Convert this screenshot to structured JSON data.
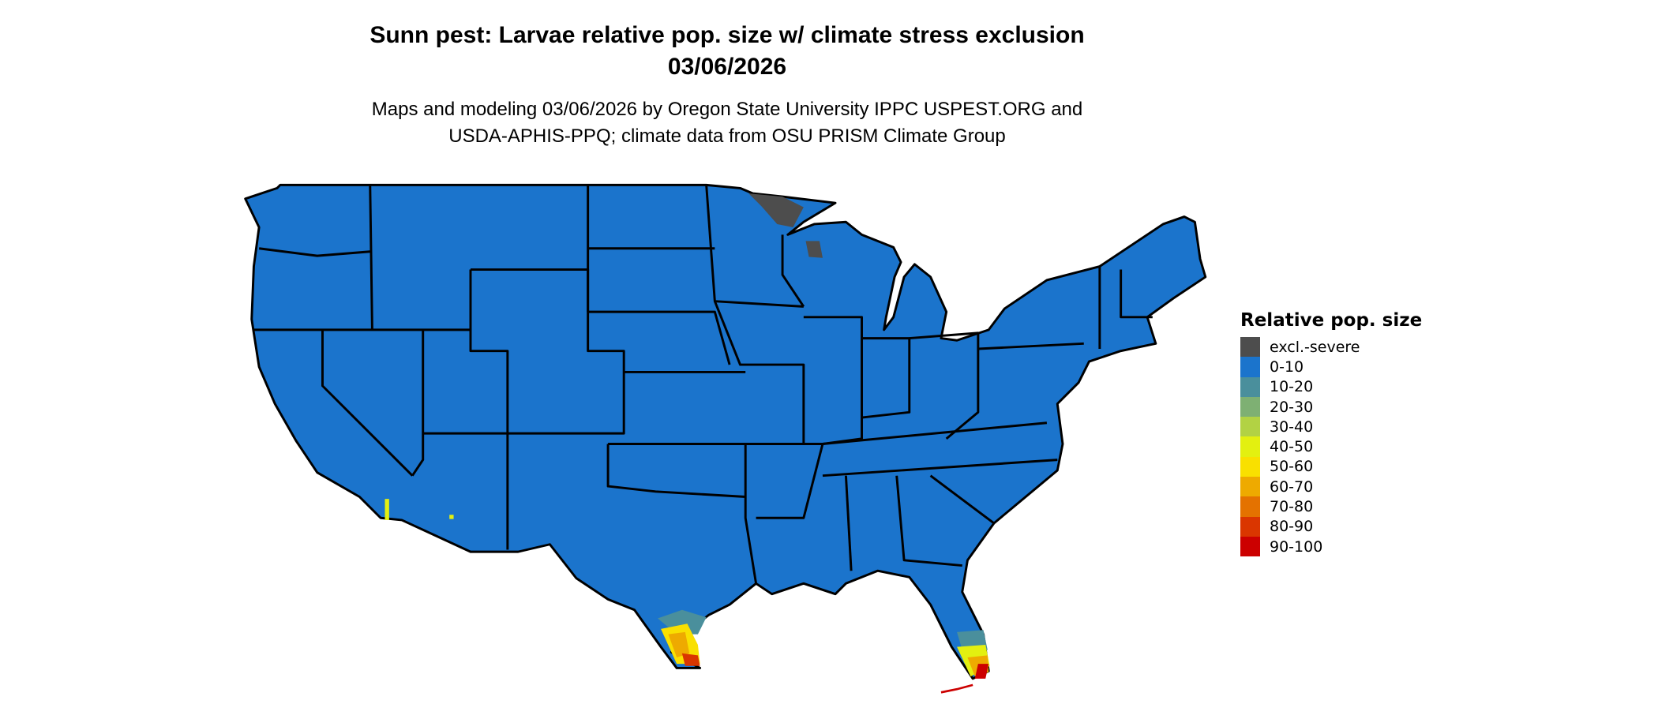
{
  "title": {
    "line1": "Sunn pest: Larvae relative pop. size w/ climate stress exclusion",
    "line2": "03/06/2026"
  },
  "subtitle": {
    "line1": "Maps and modeling 03/06/2026 by Oregon State University IPPC USPEST.ORG and",
    "line2": "USDA-APHIS-PPQ; climate data from OSU PRISM Climate Group"
  },
  "map": {
    "region": "Contiguous United States",
    "base_color": "#1b74cc",
    "border_color": "#000000"
  },
  "legend": {
    "title": "Relative pop. size",
    "items": [
      {
        "label": "excl.-severe",
        "color": "#4d4d4d"
      },
      {
        "label": "0-10",
        "color": "#1b74cc"
      },
      {
        "label": "10-20",
        "color": "#4a8f9c"
      },
      {
        "label": "20-30",
        "color": "#7eb073"
      },
      {
        "label": "30-40",
        "color": "#b2d244"
      },
      {
        "label": "40-50",
        "color": "#e3f010"
      },
      {
        "label": "50-60",
        "color": "#f9e000"
      },
      {
        "label": "60-70",
        "color": "#eeaa00"
      },
      {
        "label": "70-80",
        "color": "#e47200"
      },
      {
        "label": "80-90",
        "color": "#da3600"
      },
      {
        "label": "90-100",
        "color": "#cc0000"
      }
    ]
  }
}
